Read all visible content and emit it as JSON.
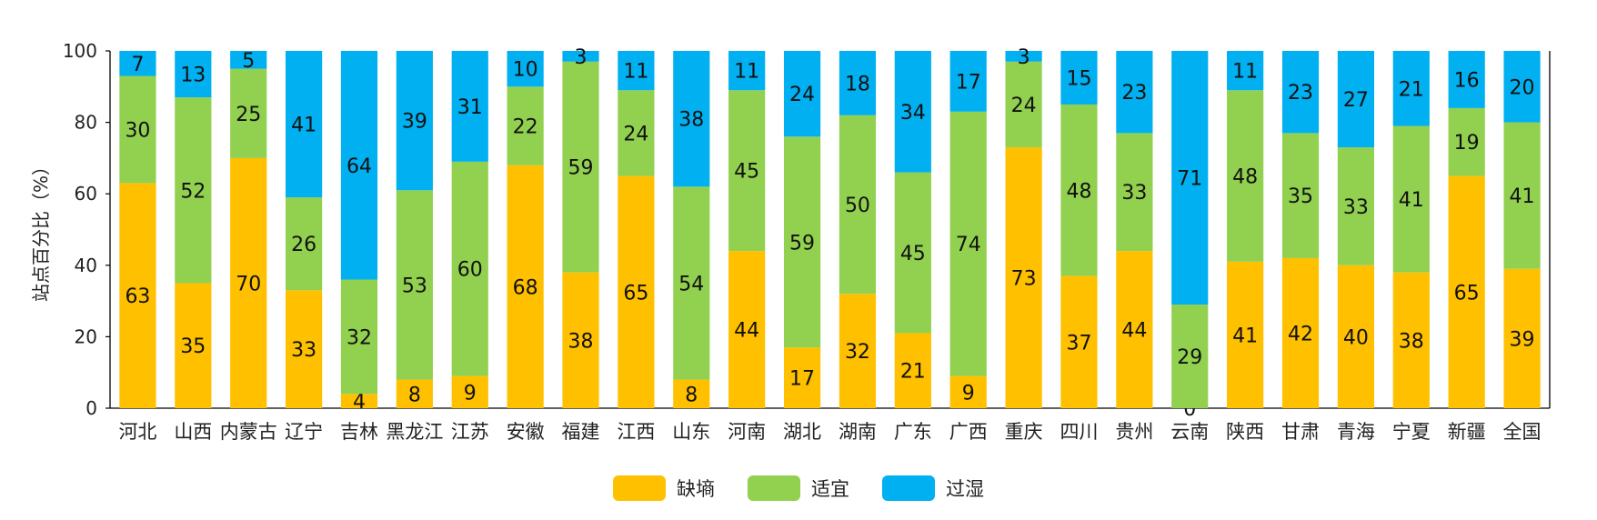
{
  "chart_data": {
    "type": "bar",
    "stacked": true,
    "ylabel": "站点百分比（%）",
    "xlabel": "",
    "ylim": [
      0,
      100
    ],
    "yticks": [
      0,
      20,
      40,
      60,
      80,
      100
    ],
    "grid": false,
    "legend_position": "bottom",
    "categories": [
      "河北",
      "山西",
      "内蒙古",
      "辽宁",
      "吉林",
      "黑龙江",
      "江苏",
      "安徽",
      "福建",
      "江西",
      "山东",
      "河南",
      "湖北",
      "湖南",
      "广东",
      "广西",
      "重庆",
      "四川",
      "贵州",
      "云南",
      "陕西",
      "甘肃",
      "青海",
      "宁夏",
      "新疆",
      "全国"
    ],
    "series": [
      {
        "name": "缺墒",
        "color": "#FFC000",
        "values": [
          63,
          35,
          70,
          33,
          4,
          8,
          9,
          68,
          38,
          65,
          8,
          44,
          17,
          32,
          21,
          9,
          73,
          37,
          44,
          0,
          41,
          42,
          40,
          38,
          65,
          39
        ]
      },
      {
        "name": "适宜",
        "color": "#92D050",
        "values": [
          30,
          52,
          25,
          26,
          32,
          53,
          60,
          22,
          59,
          24,
          54,
          45,
          59,
          50,
          45,
          74,
          24,
          48,
          33,
          29,
          48,
          35,
          33,
          41,
          19,
          41
        ]
      },
      {
        "name": "过湿",
        "color": "#00B0F0",
        "values": [
          7,
          13,
          5,
          41,
          64,
          39,
          31,
          10,
          3,
          11,
          38,
          11,
          24,
          18,
          34,
          17,
          3,
          15,
          23,
          71,
          11,
          23,
          27,
          21,
          16,
          20
        ]
      }
    ]
  }
}
